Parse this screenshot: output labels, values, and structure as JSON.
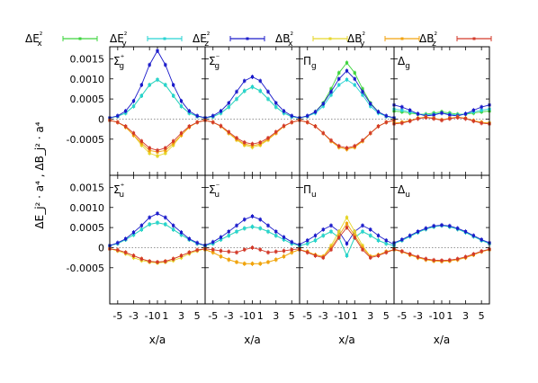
{
  "chart_data": {
    "type": "line",
    "ylabel": "ΔE_j² · a⁴ , ΔB_j² · a⁴",
    "xlabel": "x/a",
    "xticks": [
      "-5",
      "-3",
      "-1",
      "0",
      "1",
      "3",
      "5"
    ],
    "yticks": [
      "0.0015",
      "0.0010",
      "0.0005",
      "0",
      "-0.0005"
    ],
    "xlim": [
      -6,
      6
    ],
    "ylim": [
      -0.0014,
      0.0018
    ],
    "legend_position": "top",
    "series": [
      {
        "name": "ΔE_x²",
        "color": "#3ed43e"
      },
      {
        "name": "ΔE_y²",
        "color": "#27d3d3"
      },
      {
        "name": "ΔE_z²",
        "color": "#1c1ccb"
      },
      {
        "name": "ΔB_x²",
        "color": "#e6d62a"
      },
      {
        "name": "ΔB_y²",
        "color": "#f2a20f"
      },
      {
        "name": "ΔB_z²",
        "color": "#d33a2a"
      }
    ],
    "x": [
      -6,
      -5,
      -4,
      -3,
      -2,
      -1,
      0,
      1,
      2,
      3,
      4,
      5,
      6
    ],
    "panels": [
      {
        "label": "Σ_g⁺",
        "values": [
          [
            3e-05,
            7e-05,
            0.00015,
            0.00032,
            0.00058,
            0.00085,
            0.00098,
            0.00085,
            0.00058,
            0.00032,
            0.00015,
            7e-05,
            3e-05
          ],
          [
            3e-05,
            7e-05,
            0.00015,
            0.00032,
            0.00058,
            0.00085,
            0.00098,
            0.00085,
            0.00058,
            0.00032,
            0.00015,
            7e-05,
            3e-05
          ],
          [
            3e-05,
            8e-05,
            0.0002,
            0.00045,
            0.00085,
            0.00135,
            0.0017,
            0.00135,
            0.00085,
            0.00045,
            0.0002,
            8e-05,
            3e-05
          ],
          [
            -3e-05,
            -8e-05,
            -0.0002,
            -0.0004,
            -0.00065,
            -0.00085,
            -0.00092,
            -0.00085,
            -0.00065,
            -0.0004,
            -0.0002,
            -8e-05,
            -3e-05
          ],
          [
            -3e-05,
            -8e-05,
            -0.0002,
            -0.0004,
            -0.0006,
            -0.00078,
            -0.00082,
            -0.00078,
            -0.0006,
            -0.0004,
            -0.0002,
            -8e-05,
            -3e-05
          ],
          [
            -3e-05,
            -8e-05,
            -0.00018,
            -0.00035,
            -0.00055,
            -0.00072,
            -0.00078,
            -0.00072,
            -0.00055,
            -0.00035,
            -0.00018,
            -8e-05,
            -3e-05
          ]
        ]
      },
      {
        "label": "Σ_g⁻",
        "values": [
          [
            3e-05,
            6e-05,
            0.00015,
            0.0003,
            0.0005,
            0.0007,
            0.0008,
            0.0007,
            0.0005,
            0.0003,
            0.00015,
            6e-05,
            3e-05
          ],
          [
            3e-05,
            6e-05,
            0.00015,
            0.0003,
            0.0005,
            0.0007,
            0.0008,
            0.0007,
            0.0005,
            0.0003,
            0.00015,
            6e-05,
            3e-05
          ],
          [
            3e-05,
            8e-05,
            0.0002,
            0.0004,
            0.00068,
            0.00095,
            0.00105,
            0.00095,
            0.00068,
            0.0004,
            0.0002,
            8e-05,
            3e-05
          ],
          [
            -3e-05,
            -8e-05,
            -0.00018,
            -0.00035,
            -0.00052,
            -0.00065,
            -0.0007,
            -0.00065,
            -0.00052,
            -0.00035,
            -0.00018,
            -8e-05,
            -3e-05
          ],
          [
            -3e-05,
            -8e-05,
            -0.00018,
            -0.00035,
            -0.0005,
            -0.00062,
            -0.00066,
            -0.00062,
            -0.0005,
            -0.00035,
            -0.00018,
            -8e-05,
            -3e-05
          ],
          [
            -3e-05,
            -8e-05,
            -0.00017,
            -0.00032,
            -0.00047,
            -0.00058,
            -0.00062,
            -0.00058,
            -0.00047,
            -0.00032,
            -0.00017,
            -8e-05,
            -3e-05
          ]
        ]
      },
      {
        "label": "Π_g",
        "values": [
          [
            3e-05,
            7e-05,
            0.00018,
            0.0004,
            0.00075,
            0.00115,
            0.0014,
            0.00115,
            0.00075,
            0.0004,
            0.00018,
            7e-05,
            3e-05
          ],
          [
            3e-05,
            7e-05,
            0.00015,
            0.00032,
            0.0006,
            0.00085,
            0.00098,
            0.00085,
            0.0006,
            0.00032,
            0.00015,
            7e-05,
            3e-05
          ],
          [
            3e-05,
            8e-05,
            0.00018,
            0.00038,
            0.00068,
            0.001,
            0.0012,
            0.001,
            0.00068,
            0.00038,
            0.00018,
            8e-05,
            3e-05
          ],
          [
            -3e-05,
            -8e-05,
            -0.00018,
            -0.00035,
            -0.00055,
            -0.0007,
            -0.00075,
            -0.0007,
            -0.00055,
            -0.00035,
            -0.00018,
            -8e-05,
            -3e-05
          ],
          [
            -3e-05,
            -8e-05,
            -0.00018,
            -0.00035,
            -0.00055,
            -0.0007,
            -0.00075,
            -0.0007,
            -0.00055,
            -0.00035,
            -0.00018,
            -8e-05,
            -3e-05
          ],
          [
            -3e-05,
            -8e-05,
            -0.00018,
            -0.00035,
            -0.00053,
            -0.00067,
            -0.00072,
            -0.00067,
            -0.00053,
            -0.00035,
            -0.00018,
            -8e-05,
            -3e-05
          ]
        ]
      },
      {
        "label": "Δ_g",
        "values": [
          [
            0.0002,
            0.00018,
            0.00015,
            0.00012,
            0.00012,
            0.00015,
            0.00018,
            0.00015,
            0.00012,
            0.00012,
            0.00015,
            0.00018,
            0.0002
          ],
          [
            0.00025,
            0.00022,
            0.00018,
            0.00013,
            0.0001,
            0.00012,
            0.00015,
            0.00012,
            0.0001,
            0.00013,
            0.00018,
            0.00022,
            0.00025
          ],
          [
            0.00035,
            0.0003,
            0.00022,
            0.00013,
            8e-05,
            0.0001,
            0.00015,
            0.0001,
            8e-05,
            0.00013,
            0.00022,
            0.0003,
            0.00035
          ],
          [
            -0.0001,
            -8e-05,
            -4e-05,
            2e-05,
            5e-05,
            2e-05,
            -2e-05,
            2e-05,
            5e-05,
            2e-05,
            -4e-05,
            -8e-05,
            -0.0001
          ],
          [
            -0.0001,
            -8e-05,
            -4e-05,
            2e-05,
            5e-05,
            2e-05,
            -2e-05,
            2e-05,
            5e-05,
            2e-05,
            -4e-05,
            -8e-05,
            -0.0001
          ],
          [
            -0.00012,
            -0.0001,
            -5e-05,
            1e-05,
            4e-05,
            1e-05,
            -3e-05,
            1e-05,
            4e-05,
            1e-05,
            -5e-05,
            -0.0001,
            -0.00012
          ]
        ]
      },
      {
        "label": "Σ_u⁺",
        "values": [
          [
            5e-05,
            0.0001,
            0.0002,
            0.00032,
            0.00045,
            0.00058,
            0.00062,
            0.00058,
            0.00045,
            0.00032,
            0.0002,
            0.0001,
            5e-05
          ],
          [
            5e-05,
            0.0001,
            0.0002,
            0.00032,
            0.00045,
            0.00058,
            0.00062,
            0.00058,
            0.00045,
            0.00032,
            0.0002,
            0.0001,
            5e-05
          ],
          [
            5e-05,
            0.00012,
            0.00022,
            0.00038,
            0.00055,
            0.00075,
            0.00085,
            0.00075,
            0.00055,
            0.00038,
            0.00022,
            0.00012,
            5e-05
          ],
          [
            -3e-05,
            -8e-05,
            -0.00015,
            -0.00025,
            -0.00032,
            -0.00036,
            -0.00038,
            -0.00036,
            -0.00032,
            -0.00025,
            -0.00015,
            -8e-05,
            -3e-05
          ],
          [
            -3e-05,
            -6e-05,
            -0.00012,
            -0.0002,
            -0.00028,
            -0.00034,
            -0.00036,
            -0.00034,
            -0.00028,
            -0.0002,
            -0.00012,
            -6e-05,
            -3e-05
          ],
          [
            -3e-05,
            -6e-05,
            -0.00012,
            -0.0002,
            -0.00028,
            -0.00034,
            -0.00036,
            -0.00034,
            -0.00028,
            -0.0002,
            -0.00012,
            -6e-05,
            -3e-05
          ]
        ]
      },
      {
        "label": "Σ_u⁻",
        "values": [
          [
            5e-05,
            0.0001,
            0.0002,
            0.0003,
            0.0004,
            0.00048,
            0.00052,
            0.00048,
            0.0004,
            0.0003,
            0.0002,
            0.0001,
            5e-05
          ],
          [
            5e-05,
            0.0001,
            0.0002,
            0.0003,
            0.0004,
            0.00048,
            0.00052,
            0.00048,
            0.0004,
            0.0003,
            0.0002,
            0.0001,
            5e-05
          ],
          [
            6e-05,
            0.00014,
            0.00026,
            0.0004,
            0.00055,
            0.0007,
            0.00078,
            0.0007,
            0.00055,
            0.0004,
            0.00026,
            0.00014,
            6e-05
          ],
          [
            -5e-05,
            -0.00012,
            -0.00022,
            -0.0003,
            -0.00036,
            -0.0004,
            -0.0004,
            -0.0004,
            -0.00036,
            -0.0003,
            -0.00022,
            -0.00012,
            -5e-05
          ],
          [
            -5e-05,
            -0.00012,
            -0.00022,
            -0.0003,
            -0.00036,
            -0.0004,
            -0.0004,
            -0.0004,
            -0.00036,
            -0.0003,
            -0.00022,
            -0.00012,
            -5e-05
          ],
          [
            -3e-05,
            -5e-05,
            -8e-05,
            -0.0001,
            -0.00012,
            -5e-05,
            0.0,
            -5e-05,
            -0.00012,
            -0.0001,
            -8e-05,
            -5e-05,
            -3e-05
          ]
        ]
      },
      {
        "label": "Π_u",
        "values": [
          [
            5e-05,
            0.0001,
            0.00018,
            0.0003,
            0.0004,
            0.00025,
            -0.0002,
            0.00025,
            0.0004,
            0.0003,
            0.00018,
            0.0001,
            5e-05
          ],
          [
            5e-05,
            0.0001,
            0.00018,
            0.0003,
            0.0004,
            0.00025,
            -0.0002,
            0.00025,
            0.0004,
            0.0003,
            0.00018,
            0.0001,
            5e-05
          ],
          [
            8e-05,
            0.00018,
            0.0003,
            0.00045,
            0.00055,
            0.0004,
            0.0001,
            0.0004,
            0.00055,
            0.00045,
            0.0003,
            0.00018,
            8e-05
          ],
          [
            -5e-05,
            -0.0001,
            -0.00018,
            -0.00022,
            5e-05,
            0.0004,
            0.00075,
            0.0004,
            5e-05,
            -0.00022,
            -0.00018,
            -0.0001,
            -5e-05
          ],
          [
            -5e-05,
            -0.0001,
            -0.00018,
            -0.00022,
            0.0,
            0.0003,
            0.0006,
            0.0003,
            0.0,
            -0.00022,
            -0.00018,
            -0.0001,
            -5e-05
          ],
          [
            -5e-05,
            -0.00012,
            -0.0002,
            -0.00025,
            -5e-05,
            0.00025,
            0.0005,
            0.00025,
            -5e-05,
            -0.00025,
            -0.0002,
            -0.00012,
            -5e-05
          ]
        ]
      },
      {
        "label": "Δ_u",
        "values": [
          [
            0.0001,
            0.00018,
            0.00028,
            0.00038,
            0.00046,
            0.00052,
            0.00055,
            0.00052,
            0.00046,
            0.00038,
            0.00028,
            0.00018,
            0.0001
          ],
          [
            0.0001,
            0.00018,
            0.00028,
            0.00038,
            0.00046,
            0.00052,
            0.00055,
            0.00052,
            0.00046,
            0.00038,
            0.00028,
            0.00018,
            0.0001
          ],
          [
            0.00012,
            0.0002,
            0.0003,
            0.0004,
            0.00048,
            0.00054,
            0.00056,
            0.00054,
            0.00048,
            0.0004,
            0.0003,
            0.0002,
            0.00012
          ],
          [
            -5e-05,
            -0.0001,
            -0.00018,
            -0.00025,
            -0.0003,
            -0.00033,
            -0.00034,
            -0.00033,
            -0.0003,
            -0.00025,
            -0.00018,
            -0.0001,
            -5e-05
          ],
          [
            -5e-05,
            -0.0001,
            -0.00018,
            -0.00025,
            -0.0003,
            -0.00033,
            -0.00034,
            -0.00033,
            -0.0003,
            -0.00025,
            -0.00018,
            -0.0001,
            -5e-05
          ],
          [
            -4e-05,
            -9e-05,
            -0.00016,
            -0.00023,
            -0.00028,
            -0.00031,
            -0.00032,
            -0.00031,
            -0.00028,
            -0.00023,
            -0.00016,
            -9e-05,
            -4e-05
          ]
        ]
      }
    ]
  }
}
